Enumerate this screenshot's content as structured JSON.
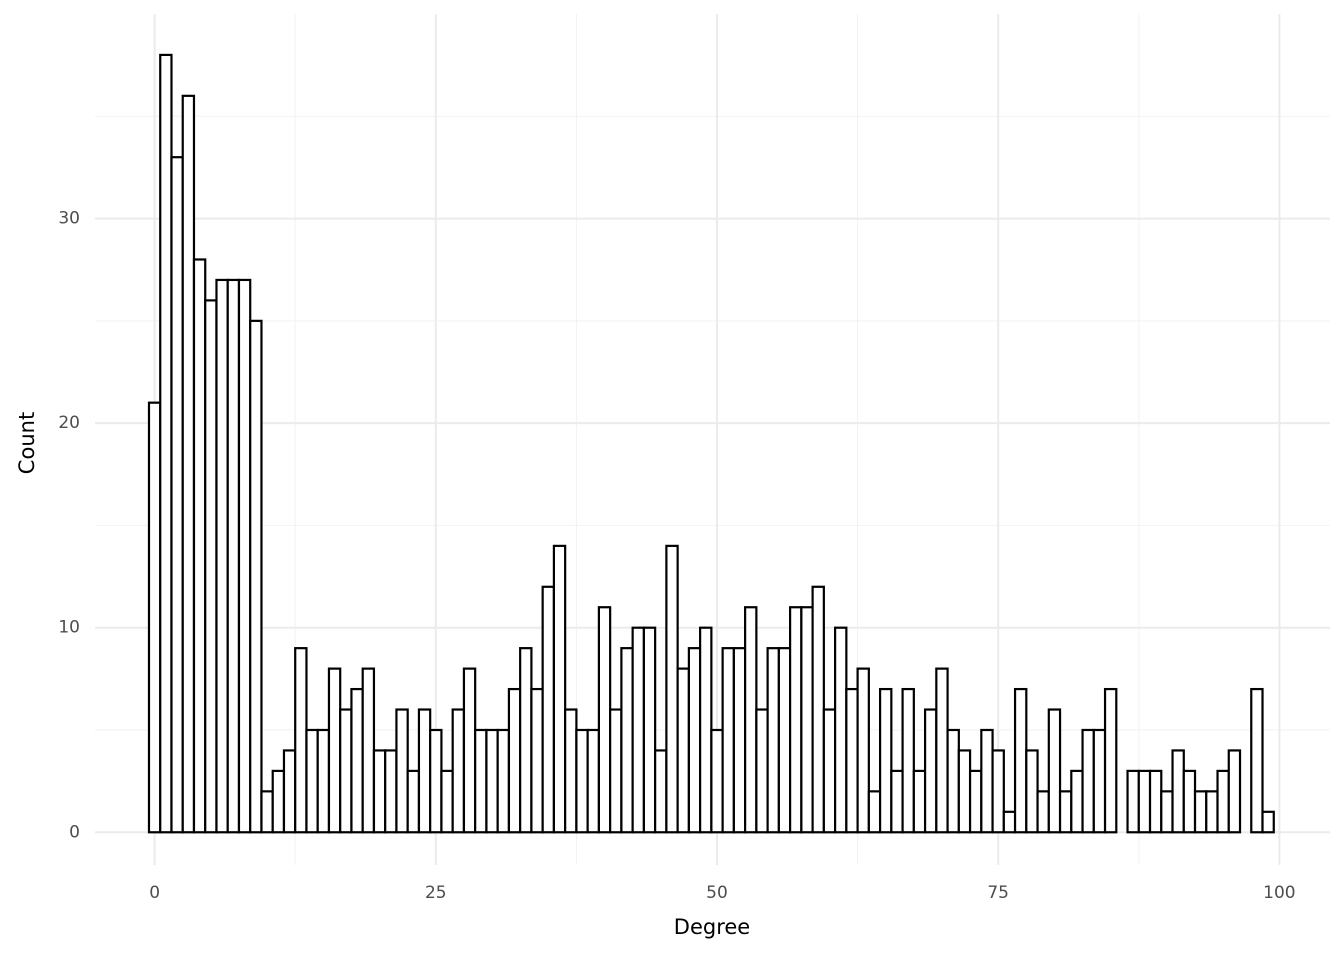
{
  "chart_data": {
    "type": "histogram",
    "x_label": "Degree",
    "y_label": "Count",
    "bins": [
      -0.5,
      0.5,
      1.5,
      2.5,
      3.5,
      4.5,
      5.5,
      6.5,
      7.5,
      8.5,
      9.5,
      10.5,
      11.5,
      12.5,
      13.5,
      14.5,
      15.5,
      16.5,
      17.5,
      18.5,
      19.5,
      20.5,
      21.5,
      22.5,
      23.5,
      24.5,
      25.5,
      26.5,
      27.5,
      28.5,
      29.5,
      30.5,
      31.5,
      32.5,
      33.5,
      34.5,
      35.5,
      36.5,
      37.5,
      38.5,
      39.5,
      40.5,
      41.5,
      42.5,
      43.5,
      44.5,
      45.5,
      46.5,
      47.5,
      48.5,
      49.5,
      50.5,
      51.5,
      52.5,
      53.5,
      54.5,
      55.5,
      56.5,
      57.5,
      58.5,
      59.5,
      60.5,
      61.5,
      62.5,
      63.5,
      64.5,
      65.5,
      66.5,
      67.5,
      68.5,
      69.5,
      70.5,
      71.5,
      72.5,
      73.5,
      74.5,
      75.5,
      76.5,
      77.5,
      78.5,
      79.5,
      80.5,
      81.5,
      82.5,
      83.5,
      84.5,
      85.5,
      86.5,
      87.5,
      88.5,
      89.5,
      90.5,
      91.5,
      92.5,
      93.5,
      94.5,
      95.5,
      96.5,
      97.5,
      98.5,
      99.5
    ],
    "values": [
      21,
      38,
      33,
      36,
      28,
      26,
      27,
      27,
      27,
      25,
      2,
      3,
      4,
      9,
      5,
      5,
      8,
      6,
      7,
      8,
      4,
      4,
      6,
      3,
      6,
      5,
      3,
      6,
      8,
      5,
      5,
      5,
      7,
      9,
      7,
      12,
      14,
      6,
      5,
      5,
      11,
      6,
      9,
      10,
      10,
      4,
      14,
      8,
      9,
      10,
      5,
      9,
      9,
      11,
      6,
      9,
      9,
      11,
      11,
      12,
      6,
      10,
      7,
      8,
      2,
      7,
      3,
      7,
      3,
      6,
      8,
      5,
      4,
      3,
      5,
      4,
      1,
      7,
      4,
      2,
      6,
      2,
      3,
      5,
      5,
      7,
      0,
      3,
      3,
      3,
      2,
      4,
      3,
      2,
      2,
      3,
      4,
      0,
      7,
      1
    ],
    "fill": "#ffffff",
    "color": "#000000",
    "xlim": [
      -5.3,
      104.5
    ],
    "xticks": [
      0,
      25,
      50,
      75,
      100
    ],
    "xminor": [
      12.5,
      37.5,
      62.5,
      87.5
    ],
    "ylim": [
      -1.6,
      40
    ],
    "yticks": [
      0,
      10,
      20,
      30
    ],
    "yminor": [
      5,
      15,
      25,
      35
    ],
    "grid": true
  }
}
